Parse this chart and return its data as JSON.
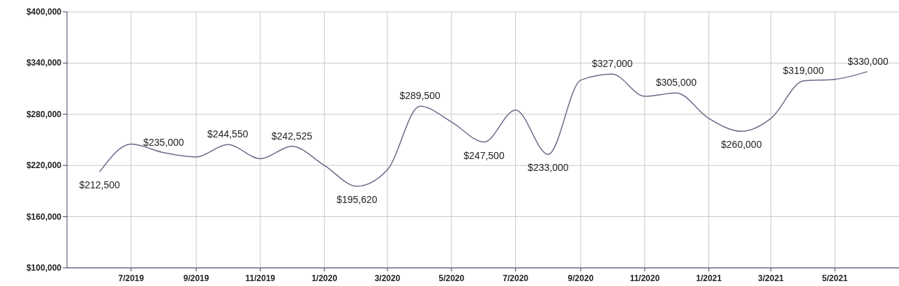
{
  "chart_data": {
    "type": "line",
    "x": [
      "2019-06",
      "2019-07",
      "2019-08",
      "2019-09",
      "2019-10",
      "2019-11",
      "2019-12",
      "2020-01",
      "2020-02",
      "2020-03",
      "2020-04",
      "2020-05",
      "2020-06",
      "2020-07",
      "2020-08",
      "2020-09",
      "2020-10",
      "2020-11",
      "2020-12",
      "2021-01",
      "2021-02",
      "2021-03",
      "2021-04",
      "2021-05",
      "2021-06"
    ],
    "series": [
      {
        "color": "#6e6888",
        "values": [
          212500,
          245000,
          235000,
          230000,
          244550,
          228000,
          242525,
          220000,
          195620,
          215000,
          289500,
          271000,
          247500,
          285000,
          233000,
          320000,
          327000,
          301000,
          305000,
          275000,
          260000,
          275000,
          319000,
          321000,
          330000
        ],
        "value_labels": [
          "$212,500",
          null,
          "$235,000",
          null,
          "$244,550",
          null,
          "$242,525",
          null,
          "$195,620",
          null,
          "$289,500",
          null,
          "$247,500",
          null,
          "$233,000",
          null,
          "$327,000",
          null,
          "$305,000",
          null,
          "$260,000",
          null,
          "$319,000",
          null,
          "$330,000"
        ]
      }
    ],
    "xlim": [
      "2019-05",
      "2021-07"
    ],
    "xticks": [
      {
        "value": "2019-07",
        "label": "7/2019"
      },
      {
        "value": "2019-09",
        "label": "9/2019"
      },
      {
        "value": "2019-11",
        "label": "11/2019"
      },
      {
        "value": "2020-01",
        "label": "1/2020"
      },
      {
        "value": "2020-03",
        "label": "3/2020"
      },
      {
        "value": "2020-05",
        "label": "5/2020"
      },
      {
        "value": "2020-07",
        "label": "7/2020"
      },
      {
        "value": "2020-09",
        "label": "9/2020"
      },
      {
        "value": "2020-11",
        "label": "11/2020"
      },
      {
        "value": "2021-01",
        "label": "1/2021"
      },
      {
        "value": "2021-03",
        "label": "3/2021"
      },
      {
        "value": "2021-05",
        "label": "5/2021"
      }
    ],
    "ylim": [
      100000,
      400000
    ],
    "yticks": [
      {
        "value": 100000,
        "label": "$100,000"
      },
      {
        "value": 160000,
        "label": "$160,000"
      },
      {
        "value": 220000,
        "label": "$220,000"
      },
      {
        "value": 280000,
        "label": "$280,000"
      },
      {
        "value": 340000,
        "label": "$340,000"
      },
      {
        "value": 400000,
        "label": "$400,000"
      }
    ],
    "grid": true,
    "marker": "none",
    "line_style": "solid"
  }
}
